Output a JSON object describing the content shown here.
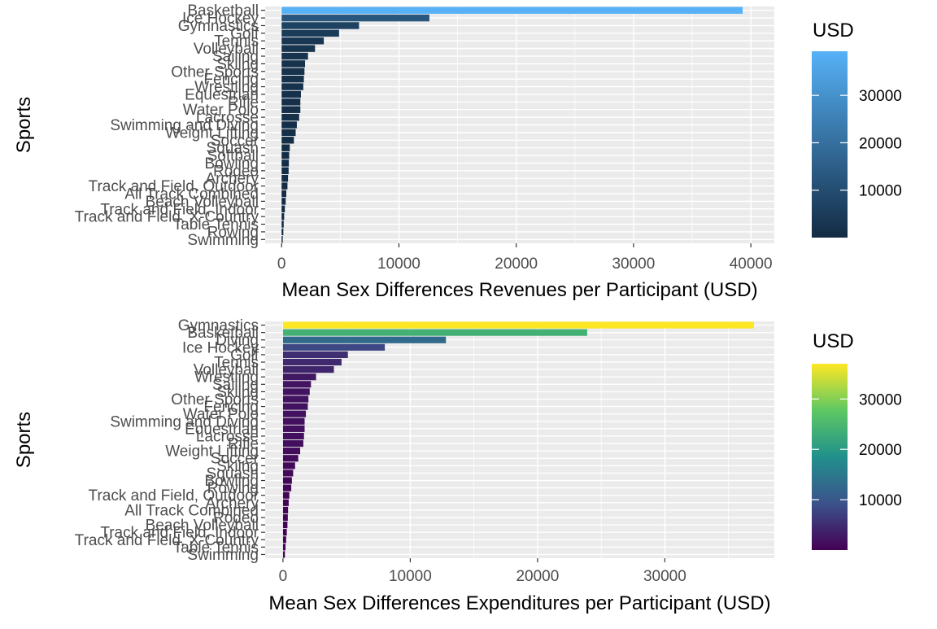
{
  "chart_data": [
    {
      "type": "bar",
      "orientation": "horizontal",
      "xlabel": "Mean Sex Differences Revenues per Participant (USD)",
      "ylabel": "Sports",
      "xlim": [
        -1400,
        42000
      ],
      "xticks": [
        0,
        10000,
        20000,
        30000,
        40000
      ],
      "xtick_labels": [
        "0",
        "10000",
        "20000",
        "30000",
        "40000"
      ],
      "grid": "on",
      "legend": {
        "title": "USD",
        "placement": "right",
        "ticks": [
          10000,
          20000,
          30000
        ],
        "tick_labels": [
          "10000",
          "20000",
          "30000"
        ],
        "range": [
          0,
          39300
        ],
        "colors": [
          "#132B43",
          "#56B1F7"
        ]
      },
      "categories": [
        "Basketball",
        "Ice Hockey",
        "Gymnastics",
        "Golf",
        "Tennis",
        "Volleyball",
        "Sailing",
        "Skiing",
        "Other Sports",
        "Fencing",
        "Wrestling",
        "Equestrian",
        "Rifle",
        "Water Polo",
        "Lacrosse",
        "Swimming and Diving",
        "Weight Lifting",
        "Soccer",
        "Squash",
        "Softball",
        "Bowling",
        "Rodeo",
        "Archery",
        "Track and Field, Outdoor",
        "All Track Combined",
        "Beach Volleyball",
        "Track and Field, Indoor",
        "Track and Field, X-Country",
        "Table Tennis",
        "Rowing",
        "Swimming"
      ],
      "values": [
        39300,
        12600,
        6600,
        4900,
        3600,
        2850,
        2250,
        2000,
        1950,
        1900,
        1850,
        1650,
        1600,
        1600,
        1500,
        1300,
        1200,
        1050,
        700,
        650,
        620,
        600,
        550,
        500,
        400,
        350,
        280,
        220,
        180,
        150,
        100
      ]
    },
    {
      "type": "bar",
      "orientation": "horizontal",
      "xlabel": "Mean Sex Differences Expenditures per Participant (USD)",
      "ylabel": "Sports",
      "xlim": [
        -1400,
        38600
      ],
      "xticks": [
        0,
        10000,
        20000,
        30000
      ],
      "xtick_labels": [
        "0",
        "10000",
        "20000",
        "30000"
      ],
      "grid": "on",
      "legend": {
        "title": "USD",
        "placement": "right",
        "ticks": [
          10000,
          20000,
          30000
        ],
        "tick_labels": [
          "10000",
          "20000",
          "30000"
        ],
        "range": [
          0,
          37000
        ],
        "colors": [
          "#440154",
          "#3B528B",
          "#21908C",
          "#5DC863",
          "#FDE725"
        ]
      },
      "categories": [
        "Gymnastics",
        "Basketball",
        "Diving",
        "Ice Hockey",
        "Golf",
        "Tennis",
        "Volleyball",
        "Wrestling",
        "Sailing",
        "Skiing",
        "Other Sports",
        "Fencing",
        "Water Polo",
        "Swimming and Diving",
        "Equestrian",
        "Lacrosse",
        "Rifle",
        "Weight Lifting",
        "Soccer",
        "Skiing",
        "Squash",
        "Bowling",
        "Rowing",
        "Track and Field, Outdoor",
        "Archery",
        "All Track Combined",
        "Rodeo",
        "Beach Volleyball",
        "Track and Field, Indoor",
        "Track and Field, X-Country",
        "Table Tennis",
        "Swimming"
      ],
      "values": [
        37000,
        23900,
        12800,
        8000,
        5100,
        4600,
        4000,
        2600,
        2200,
        2100,
        2000,
        1950,
        1800,
        1700,
        1700,
        1650,
        1600,
        1350,
        1200,
        950,
        800,
        700,
        650,
        500,
        450,
        400,
        380,
        350,
        300,
        250,
        200,
        150
      ]
    }
  ]
}
